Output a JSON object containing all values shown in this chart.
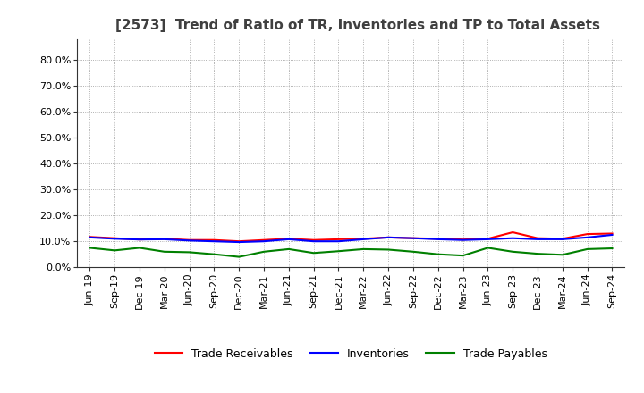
{
  "title": "[2573]  Trend of Ratio of TR, Inventories and TP to Total Assets",
  "x_labels": [
    "Jun-19",
    "Sep-19",
    "Dec-19",
    "Mar-20",
    "Jun-20",
    "Sep-20",
    "Dec-20",
    "Mar-21",
    "Jun-21",
    "Sep-21",
    "Dec-21",
    "Mar-22",
    "Jun-22",
    "Sep-22",
    "Dec-22",
    "Mar-23",
    "Jun-23",
    "Sep-23",
    "Dec-23",
    "Mar-24",
    "Jun-24",
    "Sep-24"
  ],
  "trade_receivables": [
    0.117,
    0.112,
    0.107,
    0.11,
    0.105,
    0.105,
    0.1,
    0.105,
    0.11,
    0.105,
    0.108,
    0.11,
    0.115,
    0.112,
    0.11,
    0.107,
    0.11,
    0.135,
    0.112,
    0.11,
    0.128,
    0.13
  ],
  "inventories": [
    0.115,
    0.11,
    0.107,
    0.108,
    0.103,
    0.1,
    0.097,
    0.1,
    0.108,
    0.1,
    0.1,
    0.108,
    0.115,
    0.112,
    0.108,
    0.105,
    0.108,
    0.112,
    0.108,
    0.108,
    0.115,
    0.125
  ],
  "trade_payables": [
    0.075,
    0.065,
    0.075,
    0.06,
    0.058,
    0.05,
    0.04,
    0.06,
    0.07,
    0.055,
    0.062,
    0.07,
    0.068,
    0.06,
    0.05,
    0.045,
    0.075,
    0.06,
    0.052,
    0.048,
    0.07,
    0.073
  ],
  "tr_color": "#FF0000",
  "inv_color": "#0000FF",
  "tp_color": "#008000",
  "ylim": [
    0.0,
    0.88
  ],
  "yticks": [
    0.0,
    0.1,
    0.2,
    0.3,
    0.4,
    0.5,
    0.6,
    0.7,
    0.8
  ],
  "legend_labels": [
    "Trade Receivables",
    "Inventories",
    "Trade Payables"
  ],
  "bg_color": "#FFFFFF",
  "grid_color": "#999999",
  "title_color": "#404040",
  "title_fontsize": 11,
  "tick_fontsize": 8,
  "legend_fontsize": 9
}
